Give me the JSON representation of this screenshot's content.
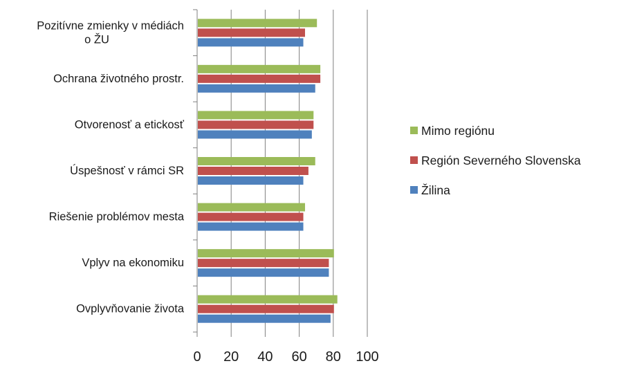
{
  "chart_data": {
    "type": "bar",
    "orientation": "horizontal",
    "categories": [
      [
        "Pozitívne zmienky v médiách",
        "o ŽU"
      ],
      [
        "Ochrana životného prostr."
      ],
      [
        "Otvorenosť a etickosť"
      ],
      [
        "Úspešnosť v rámci SR"
      ],
      [
        "Riešenie problémov mesta"
      ],
      [
        "Vplyv na ekonomiku"
      ],
      [
        "Ovplyvňovanie života"
      ]
    ],
    "series": [
      {
        "name": "Mimo regiónu",
        "color": "#9bbb59",
        "values": [
          70,
          72,
          68,
          69,
          63,
          80,
          82
        ]
      },
      {
        "name": "Región Severného Slovenska",
        "color": "#c0504d",
        "values": [
          63,
          72,
          68,
          65,
          62,
          77,
          80
        ]
      },
      {
        "name": "Žilina",
        "color": "#4f81bd",
        "values": [
          62,
          69,
          67,
          62,
          62,
          77,
          78
        ]
      }
    ],
    "xlim": [
      0,
      100
    ],
    "xticks": [
      "0",
      "20",
      "40",
      "60",
      "80",
      "100"
    ],
    "grid": "vertical",
    "legend": "right"
  }
}
